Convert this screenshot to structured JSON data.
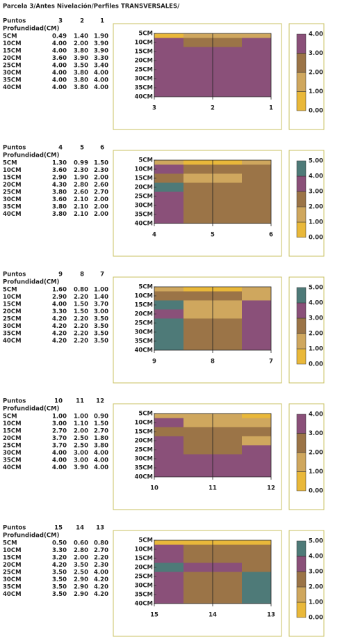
{
  "title": "Parcela 3/Antes Nivelación/Perfiles TRANSVERSALES/",
  "colors": [
    "#e9b83a",
    "#cfa75e",
    "#9b7447",
    "#8a5079",
    "#4e7a78"
  ],
  "panels": [
    {
      "points_label": "Puntos",
      "points": [
        "3",
        "2",
        "1"
      ],
      "depth_label": "Profundidad(CM)",
      "rows": [
        {
          "depth": "5CM",
          "values": [
            "0.49",
            "1.40",
            "1.90"
          ]
        },
        {
          "depth": "10CM",
          "values": [
            "4.00",
            "2.00",
            "3.90"
          ]
        },
        {
          "depth": "15CM",
          "values": [
            "4.00",
            "3.80",
            "3.90"
          ]
        },
        {
          "depth": "20CM",
          "values": [
            "3.60",
            "3.90",
            "3.30"
          ]
        },
        {
          "depth": "25CM",
          "values": [
            "4.00",
            "3.50",
            "3.40"
          ]
        },
        {
          "depth": "30CM",
          "values": [
            "4.00",
            "3.80",
            "4.00"
          ]
        },
        {
          "depth": "35CM",
          "values": [
            "4.00",
            "3.80",
            "4.00"
          ]
        },
        {
          "depth": "40CM",
          "values": [
            "4.00",
            "3.80",
            "4.00"
          ]
        }
      ],
      "legend_ticks": [
        "4.00",
        "3.00",
        "2.00",
        "1.00",
        "0.00"
      ]
    },
    {
      "points_label": "Puntos",
      "points": [
        "4",
        "5",
        "6"
      ],
      "depth_label": "Profundidad(CM)",
      "rows": [
        {
          "depth": "5CM",
          "values": [
            "1.30",
            "0.99",
            "1.50"
          ]
        },
        {
          "depth": "10CM",
          "values": [
            "3.60",
            "2.30",
            "2.30"
          ]
        },
        {
          "depth": "15CM",
          "values": [
            "2.90",
            "1.90",
            "2.00"
          ]
        },
        {
          "depth": "20CM",
          "values": [
            "4.30",
            "2.80",
            "2.60"
          ]
        },
        {
          "depth": "25CM",
          "values": [
            "3.80",
            "2.60",
            "2.70"
          ]
        },
        {
          "depth": "30CM",
          "values": [
            "3.60",
            "2.10",
            "2.00"
          ]
        },
        {
          "depth": "35CM",
          "values": [
            "3.80",
            "2.10",
            "2.00"
          ]
        },
        {
          "depth": "40CM",
          "values": [
            "3.80",
            "2.10",
            "2.00"
          ]
        }
      ],
      "legend_ticks": [
        "5.00",
        "4.00",
        "3.00",
        "2.00",
        "1.00",
        "0.00"
      ]
    },
    {
      "points_label": "Puntos",
      "points": [
        "9",
        "8",
        "7"
      ],
      "depth_label": "Profundidad(CM)",
      "rows": [
        {
          "depth": "5CM",
          "values": [
            "1.60",
            "0.80",
            "1.00"
          ]
        },
        {
          "depth": "10CM",
          "values": [
            "2.90",
            "2.20",
            "1.40"
          ]
        },
        {
          "depth": "15CM",
          "values": [
            "4.00",
            "1.50",
            "3.70"
          ]
        },
        {
          "depth": "20CM",
          "values": [
            "3.30",
            "1.50",
            "3.00"
          ]
        },
        {
          "depth": "25CM",
          "values": [
            "4.20",
            "2.20",
            "3.50"
          ]
        },
        {
          "depth": "30CM",
          "values": [
            "4.20",
            "2.20",
            "3.50"
          ]
        },
        {
          "depth": "35CM",
          "values": [
            "4.20",
            "2.20",
            "3.50"
          ]
        },
        {
          "depth": "40CM",
          "values": [
            "4.20",
            "2.20",
            "3.50"
          ]
        }
      ],
      "legend_ticks": [
        "5.00",
        "4.00",
        "3.00",
        "2.00",
        "1.00",
        "0.00"
      ]
    },
    {
      "points_label": "Puntos",
      "points": [
        "10",
        "11",
        "12"
      ],
      "depth_label": "Profundidad(CM)",
      "rows": [
        {
          "depth": "5CM",
          "values": [
            "1.00",
            "1.00",
            "0.90"
          ]
        },
        {
          "depth": "10CM",
          "values": [
            "3.00",
            "1.10",
            "1.50"
          ]
        },
        {
          "depth": "15CM",
          "values": [
            "2.70",
            "2.00",
            "2.70"
          ]
        },
        {
          "depth": "20CM",
          "values": [
            "3.70",
            "2.50",
            "1.80"
          ]
        },
        {
          "depth": "25CM",
          "values": [
            "3.70",
            "2.50",
            "3.80"
          ]
        },
        {
          "depth": "30CM",
          "values": [
            "4.00",
            "3.00",
            "4.00"
          ]
        },
        {
          "depth": "35CM",
          "values": [
            "4.00",
            "3.00",
            "4.00"
          ]
        },
        {
          "depth": "40CM",
          "values": [
            "4.00",
            "3.90",
            "4.00"
          ]
        }
      ],
      "legend_ticks": [
        "4.00",
        "3.00",
        "2.00",
        "1.00",
        "0.00"
      ]
    },
    {
      "points_label": "Puntos",
      "points": [
        "15",
        "14",
        "13"
      ],
      "depth_label": "Profundidad(CM)",
      "rows": [
        {
          "depth": "5CM",
          "values": [
            "0.50",
            "0.60",
            "0.80"
          ]
        },
        {
          "depth": "10CM",
          "values": [
            "3.30",
            "2.80",
            "2.70"
          ]
        },
        {
          "depth": "15CM",
          "values": [
            "3.20",
            "2.00",
            "2.20"
          ]
        },
        {
          "depth": "20CM",
          "values": [
            "4.20",
            "3.50",
            "2.30"
          ]
        },
        {
          "depth": "25CM",
          "values": [
            "3.50",
            "2.50",
            "4.00"
          ]
        },
        {
          "depth": "30CM",
          "values": [
            "3.50",
            "2.90",
            "4.20"
          ]
        },
        {
          "depth": "35CM",
          "values": [
            "3.50",
            "2.90",
            "4.20"
          ]
        },
        {
          "depth": "40CM",
          "values": [
            "3.50",
            "2.90",
            "4.20"
          ]
        }
      ],
      "legend_ticks": [
        "5.00",
        "4.00",
        "3.00",
        "2.00",
        "1.00",
        "0.00"
      ]
    }
  ]
}
